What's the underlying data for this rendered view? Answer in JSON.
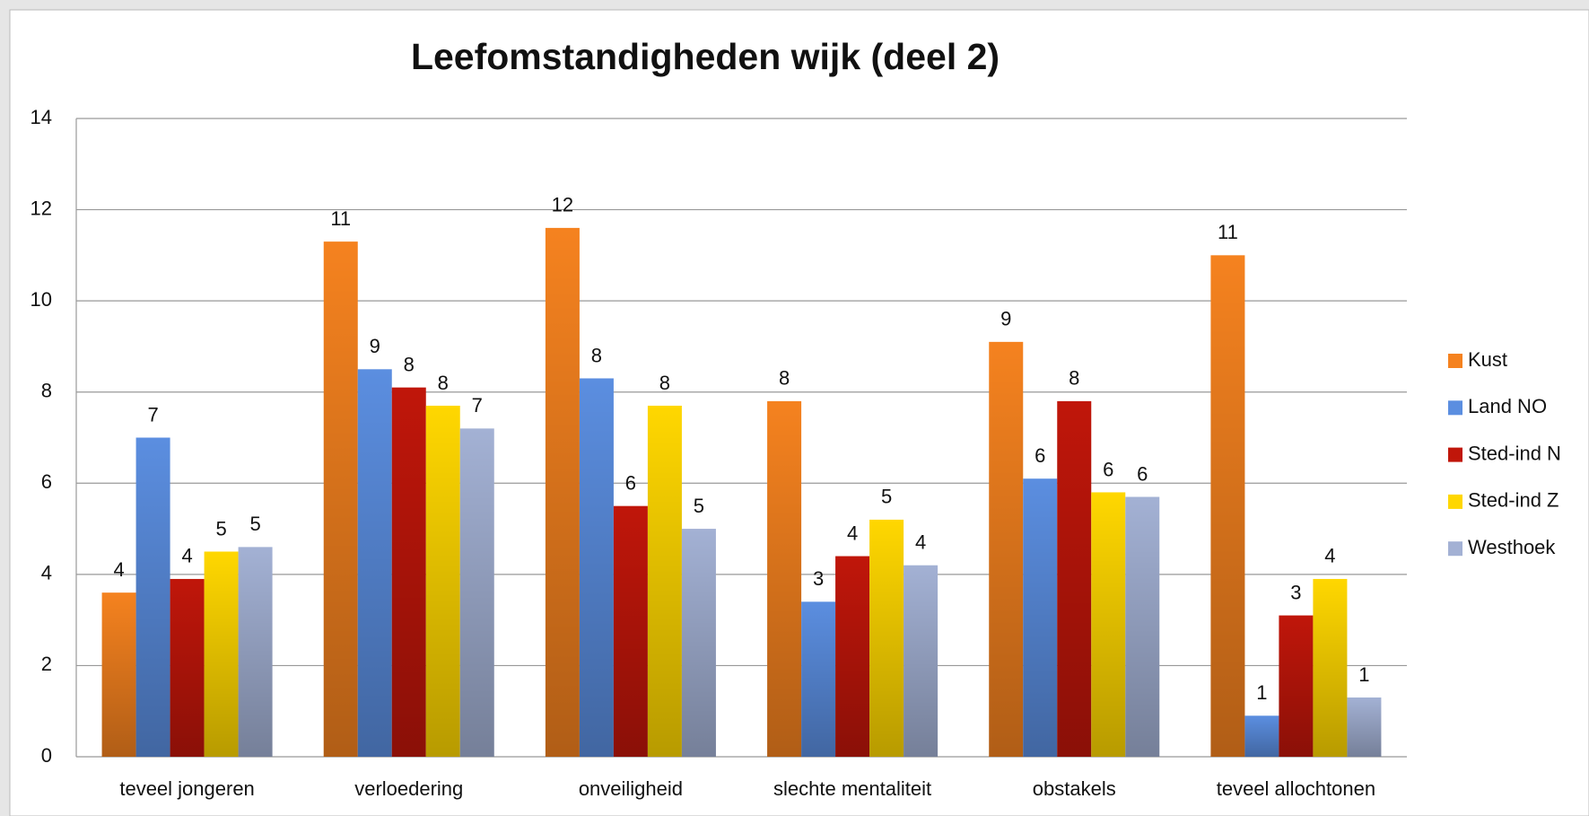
{
  "chart_data": {
    "type": "bar",
    "title": "Leefomstandigheden wijk (deel 2)",
    "categories": [
      "teveel jongeren",
      "verloedering",
      "onveiligheid",
      "slechte mentaliteit",
      "obstakels",
      "teveel allochtonen"
    ],
    "series": [
      {
        "name": "Kust",
        "color": "#f5821f",
        "values": [
          3.6,
          11.3,
          11.6,
          7.8,
          9.1,
          11.0
        ],
        "value_labels": [
          "4",
          "11",
          "12",
          "8",
          "9",
          "11"
        ]
      },
      {
        "name": "Land NO",
        "color": "#5b8ee0",
        "values": [
          7.0,
          8.5,
          8.3,
          3.4,
          6.1,
          0.9
        ],
        "value_labels": [
          "7",
          "9",
          "8",
          "3",
          "6",
          "1"
        ]
      },
      {
        "name": "Sted-ind N",
        "color": "#c0160a",
        "values": [
          3.9,
          8.1,
          5.5,
          4.4,
          7.8,
          3.1
        ],
        "value_labels": [
          "4",
          "8",
          "6",
          "4",
          "8",
          "3"
        ]
      },
      {
        "name": "Sted-ind Z",
        "color": "#ffd700",
        "values": [
          4.5,
          7.7,
          7.7,
          5.2,
          5.8,
          3.9
        ],
        "value_labels": [
          "5",
          "8",
          "8",
          "5",
          "6",
          "4"
        ]
      },
      {
        "name": "Westhoek",
        "color": "#a3b1d4",
        "values": [
          4.6,
          7.2,
          5.0,
          4.2,
          5.7,
          1.3
        ],
        "value_labels": [
          "5",
          "7",
          "5",
          "4",
          "6",
          "1"
        ]
      }
    ],
    "ylim": [
      0,
      14
    ],
    "yticks": [
      0,
      2,
      4,
      6,
      8,
      10,
      12,
      14
    ],
    "grid": true,
    "legend": "right"
  }
}
